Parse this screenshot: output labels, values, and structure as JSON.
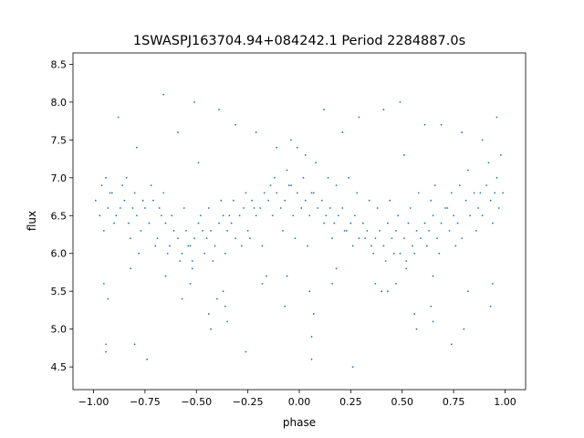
{
  "chart_data": {
    "type": "scatter",
    "title": "1SWASPJ163704.94+084242.1 Period 2284887.0s",
    "xlabel": "phase",
    "ylabel": "flux",
    "xlim": [
      -1.1,
      1.1
    ],
    "ylim": [
      4.2,
      8.65
    ],
    "x_ticks": [
      -1.0,
      -0.75,
      -0.5,
      -0.25,
      0.0,
      0.25,
      0.5,
      0.75,
      1.0
    ],
    "x_tick_labels": [
      "−1.00",
      "−0.75",
      "−0.50",
      "−0.25",
      "0.00",
      "0.25",
      "0.50",
      "0.75",
      "1.00"
    ],
    "y_ticks": [
      4.5,
      5.0,
      5.5,
      6.0,
      6.5,
      7.0,
      7.5,
      8.0,
      8.5
    ],
    "y_tick_labels": [
      "4.5",
      "5.0",
      "5.5",
      "6.0",
      "6.5",
      "7.0",
      "7.5",
      "8.0",
      "8.5"
    ],
    "grid": false,
    "legend": "none",
    "marker_color": "#1f77b4",
    "series": [
      {
        "x": [
          -0.99,
          -0.97,
          -0.95,
          -0.93,
          -0.91,
          -0.89,
          -0.87,
          -0.85,
          -0.83,
          -0.81,
          -0.79,
          -0.77,
          -0.75,
          -0.73,
          -0.71,
          -0.69,
          -0.67,
          -0.65,
          -0.63,
          -0.61,
          -0.59,
          -0.57,
          -0.55,
          -0.53,
          -0.51,
          -0.49,
          -0.47,
          -0.45,
          -0.43,
          -0.41,
          -0.39,
          -0.37,
          -0.35,
          -0.33,
          -0.31,
          -0.29,
          -0.27,
          -0.25,
          -0.23,
          -0.21,
          -0.19,
          -0.17,
          -0.15,
          -0.13,
          -0.11,
          -0.09,
          -0.07,
          -0.05,
          -0.03,
          -0.01,
          0.01,
          0.03,
          0.05,
          0.07,
          0.09,
          0.11,
          0.13,
          0.15,
          0.17,
          0.19,
          0.21,
          0.23,
          0.25,
          0.27,
          0.29,
          0.31,
          0.33,
          0.35,
          0.37,
          0.39,
          0.41,
          0.43,
          0.45,
          0.47,
          0.49,
          0.51,
          0.53,
          0.55,
          0.57,
          0.59,
          0.61,
          0.63,
          0.65,
          0.67,
          0.69,
          0.71,
          0.73,
          0.75,
          0.77,
          0.79,
          0.81,
          0.83,
          0.85,
          0.87,
          0.89,
          0.91,
          0.93,
          0.95,
          0.97,
          0.99,
          -0.96,
          -0.94,
          -0.92,
          -0.9,
          -0.86,
          -0.84,
          -0.82,
          -0.8,
          -0.78,
          -0.76,
          -0.72,
          -0.7,
          -0.68,
          -0.66,
          -0.64,
          -0.62,
          -0.58,
          -0.56,
          -0.54,
          -0.52,
          -0.48,
          -0.46,
          -0.44,
          -0.42,
          -0.38,
          -0.36,
          -0.34,
          -0.32,
          -0.28,
          -0.26,
          -0.24,
          -0.22,
          -0.18,
          -0.14,
          -0.12,
          -0.08,
          -0.06,
          -0.04,
          -0.02,
          0.02,
          0.04,
          0.06,
          0.08,
          0.12,
          0.14,
          0.16,
          0.18,
          0.22,
          0.24,
          0.26,
          0.28,
          0.32,
          0.34,
          0.36,
          0.38,
          0.42,
          0.44,
          0.46,
          0.48,
          0.52,
          0.54,
          0.56,
          0.58,
          0.62,
          0.64,
          0.66,
          0.68,
          0.72,
          0.74,
          0.76,
          0.78,
          0.82,
          0.86,
          0.88,
          0.92,
          0.94,
          0.96,
          0.98,
          -0.95,
          -0.94,
          -0.57,
          -0.53,
          -0.44,
          -0.43,
          -0.36,
          -0.35,
          -0.06,
          0.05,
          0.06,
          0.43,
          0.47,
          0.56,
          0.57,
          0.64,
          0.65,
          0.94,
          0.06,
          -0.94,
          -0.88,
          -0.79,
          -0.66,
          -0.59,
          -0.51,
          -0.39,
          -0.31,
          -0.21,
          -0.11,
          -0.04,
          0.03,
          0.12,
          0.21,
          0.29,
          0.41,
          0.49,
          0.61,
          0.69,
          0.79,
          0.89,
          0.96,
          -0.74,
          -0.26,
          0.26,
          0.74,
          -0.49,
          0.51,
          -0.01,
          -0.82,
          -0.65,
          -0.52,
          -0.37,
          -0.18,
          0.18,
          0.37,
          0.52,
          0.65,
          0.82,
          -0.93,
          -0.07,
          0.07,
          0.93,
          -0.4,
          0.4,
          -0.16,
          0.16,
          -0.8,
          0.8
        ],
        "y": [
          6.7,
          6.5,
          6.3,
          6.6,
          6.8,
          6.5,
          6.6,
          6.7,
          6.4,
          6.6,
          6.5,
          6.3,
          6.6,
          6.4,
          6.7,
          6.2,
          6.5,
          6.4,
          6.1,
          6.3,
          6.2,
          6.0,
          6.3,
          6.1,
          6.2,
          6.4,
          6.3,
          6.2,
          6.3,
          6.1,
          6.4,
          6.5,
          6.3,
          6.4,
          6.2,
          6.5,
          6.6,
          6.3,
          6.7,
          6.5,
          6.6,
          6.8,
          6.7,
          6.5,
          6.8,
          6.6,
          6.7,
          6.9,
          6.5,
          6.8,
          6.6,
          6.7,
          6.5,
          6.8,
          6.6,
          6.7,
          6.5,
          6.6,
          6.4,
          6.5,
          6.6,
          6.3,
          6.4,
          6.5,
          6.2,
          6.4,
          6.3,
          6.1,
          6.2,
          6.3,
          6.1,
          6.4,
          6.2,
          6.3,
          6.0,
          6.2,
          6.4,
          6.1,
          6.3,
          6.2,
          6.4,
          6.3,
          6.5,
          6.2,
          6.4,
          6.6,
          6.3,
          6.5,
          6.4,
          6.2,
          6.7,
          6.5,
          6.8,
          6.6,
          6.5,
          6.9,
          6.7,
          6.8,
          6.6,
          6.8,
          6.9,
          7.0,
          6.8,
          6.4,
          6.9,
          7.0,
          6.2,
          6.8,
          6.0,
          6.7,
          6.9,
          6.1,
          6.6,
          6.8,
          6.0,
          6.5,
          5.9,
          6.6,
          6.1,
          5.8,
          6.5,
          6.0,
          6.6,
          5.9,
          6.7,
          6.0,
          6.5,
          6.7,
          6.1,
          6.8,
          6.2,
          6.6,
          6.1,
          6.9,
          7.0,
          6.3,
          7.1,
          6.9,
          6.2,
          7.0,
          6.1,
          6.8,
          7.2,
          6.4,
          7.0,
          6.2,
          6.9,
          6.3,
          7.0,
          6.1,
          6.8,
          6.2,
          6.7,
          6.0,
          6.6,
          5.9,
          6.7,
          6.0,
          6.5,
          5.8,
          6.6,
          6.0,
          6.8,
          6.1,
          6.7,
          6.9,
          6.0,
          6.6,
          6.8,
          6.1,
          6.9,
          7.1,
          6.3,
          6.8,
          7.2,
          6.4,
          7.0,
          7.3,
          5.6,
          4.8,
          5.4,
          5.6,
          5.2,
          5.0,
          5.3,
          5.1,
          5.7,
          5.5,
          4.9,
          5.5,
          5.6,
          5.2,
          5.0,
          5.3,
          5.1,
          5.6,
          4.6,
          4.7,
          7.8,
          7.4,
          8.1,
          7.6,
          8.0,
          7.9,
          7.7,
          7.6,
          7.4,
          7.5,
          7.3,
          7.9,
          7.6,
          7.8,
          7.9,
          8.0,
          7.7,
          7.7,
          7.6,
          7.5,
          7.8,
          4.6,
          4.7,
          4.5,
          4.8,
          7.2,
          7.3,
          7.4,
          5.8,
          5.7,
          5.9,
          5.5,
          5.6,
          5.8,
          5.6,
          5.9,
          5.7,
          5.5,
          5.4,
          5.3,
          5.2,
          5.3,
          5.4,
          5.5,
          5.7,
          5.6,
          4.8,
          5.0
        ]
      }
    ]
  }
}
